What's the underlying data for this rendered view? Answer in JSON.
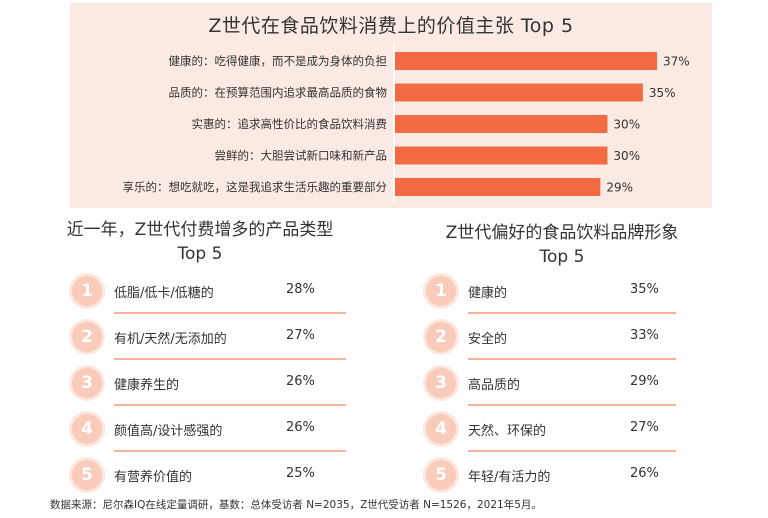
{
  "chart_data": [
    {
      "type": "bar",
      "orientation": "horizontal",
      "title": "Z世代在食品饮料消费上的价值主张 Top 5",
      "categories": [
        "健康的：吃得健康，而不是成为身体的负担",
        "品质的：在预算范围内追求最高品质的食物",
        "实惠的：追求高性价比的食品饮料消费",
        "尝鲜的：大胆尝试新口味和新产品",
        "享乐的：想吃就吃，这是我追求生活乐趣的重要部分"
      ],
      "values": [
        37,
        35,
        30,
        30,
        29
      ],
      "value_labels": [
        "37%",
        "35%",
        "30%",
        "30%",
        "29%"
      ],
      "unit": "%",
      "bar_color": "#f26b43",
      "background_color": "#fbeae3"
    },
    {
      "type": "table",
      "title_lines": [
        "近一年，Z世代付费增多的产品类型",
        "Top 5"
      ],
      "columns": [
        "rank",
        "category",
        "value"
      ],
      "rows": [
        {
          "rank": "1",
          "label": "低脂/低卡/低糖的",
          "value": "28%"
        },
        {
          "rank": "2",
          "label": "有机/天然/无添加的",
          "value": "27%"
        },
        {
          "rank": "3",
          "label": "健康养生的",
          "value": "26%"
        },
        {
          "rank": "4",
          "label": "颜值高/设计感强的",
          "value": "26%"
        },
        {
          "rank": "5",
          "label": "有营养价值的",
          "value": "25%"
        }
      ]
    },
    {
      "type": "table",
      "title_lines": [
        "Z世代偏好的食品饮料品牌形象",
        "Top 5"
      ],
      "columns": [
        "rank",
        "category",
        "value"
      ],
      "rows": [
        {
          "rank": "1",
          "label": "健康的",
          "value": "35%"
        },
        {
          "rank": "2",
          "label": "安全的",
          "value": "33%"
        },
        {
          "rank": "3",
          "label": "高品质的",
          "value": "29%"
        },
        {
          "rank": "4",
          "label": "天然、环保的",
          "value": "27%"
        },
        {
          "rank": "5",
          "label": "年轻/有活力的",
          "value": "26%"
        }
      ]
    }
  ],
  "colors": {
    "accent": "#f26b43",
    "circle": "#f9cbbb",
    "divider": "#f7b49c"
  },
  "source": "数据来源：尼尔森IQ在线定量调研，基数：总体受访者 N=2035，Z世代受访者 N=1526，2021年5月。"
}
